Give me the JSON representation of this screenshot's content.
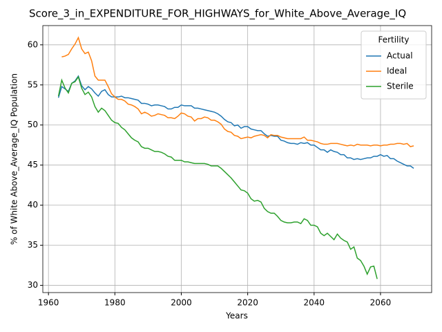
{
  "chart_data": {
    "type": "line",
    "title": "Score_3_in_EXPENDITURE_FOR_HIGHWAYS_for_White_Above_Average_IQ",
    "xlabel": "Years",
    "ylabel": "% of White Above_Average_IQ Population",
    "legend_title": "Fertility",
    "legend_loc": "upper right",
    "grid": true,
    "xlim": [
      1958.3,
      2075.4
    ],
    "ylim": [
      29.1,
      62.4
    ],
    "xticks": [
      1960,
      1980,
      2000,
      2020,
      2040,
      2060
    ],
    "yticks": [
      30,
      35,
      40,
      45,
      50,
      55,
      60
    ],
    "x": [
      1963,
      1964,
      1965,
      1966,
      1967,
      1968,
      1969,
      1970,
      1971,
      1972,
      1973,
      1974,
      1975,
      1976,
      1977,
      1978,
      1979,
      1980,
      1981,
      1982,
      1983,
      1984,
      1985,
      1986,
      1987,
      1988,
      1989,
      1990,
      1991,
      1992,
      1993,
      1994,
      1995,
      1996,
      1997,
      1998,
      1999,
      2000,
      2001,
      2002,
      2003,
      2004,
      2005,
      2006,
      2007,
      2008,
      2009,
      2010,
      2011,
      2012,
      2013,
      2014,
      2015,
      2016,
      2017,
      2018,
      2019,
      2020,
      2021,
      2022,
      2023,
      2024,
      2025,
      2026,
      2027,
      2028,
      2029,
      2030,
      2031,
      2032,
      2033,
      2034,
      2035,
      2036,
      2037,
      2038,
      2039,
      2040,
      2041,
      2042,
      2043,
      2044,
      2045,
      2046,
      2047,
      2048,
      2049,
      2050,
      2051,
      2052,
      2053,
      2054,
      2055,
      2056,
      2057,
      2058,
      2059,
      2060,
      2061,
      2062,
      2063,
      2064,
      2065,
      2066,
      2067,
      2068,
      2069,
      2070
    ],
    "series": [
      {
        "name": "Actual",
        "color": "#1f77b4",
        "values": [
          53.4,
          54.8,
          54.5,
          54.2,
          55.2,
          55.5,
          56.1,
          54.9,
          54.4,
          54.8,
          54.5,
          54.0,
          53.6,
          54.2,
          54.4,
          53.8,
          53.5,
          53.5,
          53.5,
          53.6,
          53.4,
          53.4,
          53.3,
          53.2,
          53.1,
          52.7,
          52.7,
          52.6,
          52.4,
          52.5,
          52.5,
          52.4,
          52.3,
          52.0,
          52.0,
          52.2,
          52.2,
          52.5,
          52.4,
          52.4,
          52.4,
          52.1,
          52.1,
          52.0,
          51.9,
          51.8,
          51.7,
          51.6,
          51.4,
          51.1,
          50.7,
          50.4,
          50.3,
          49.9,
          50.0,
          49.6,
          49.8,
          49.8,
          49.5,
          49.4,
          49.3,
          49.3,
          48.9,
          48.6,
          48.7,
          48.6,
          48.6,
          48.1,
          48.0,
          47.8,
          47.7,
          47.7,
          47.6,
          47.8,
          47.7,
          47.8,
          47.5,
          47.5,
          47.2,
          46.9,
          46.9,
          46.6,
          46.9,
          46.7,
          46.6,
          46.3,
          46.3,
          45.9,
          45.9,
          45.7,
          45.8,
          45.7,
          45.8,
          45.9,
          45.9,
          46.1,
          46.1,
          46.3,
          46.1,
          46.2,
          45.8,
          45.8,
          45.5,
          45.3,
          45.1,
          44.9,
          44.9,
          44.6
        ]
      },
      {
        "name": "Ideal",
        "color": "#ff7f0e",
        "values": [
          null,
          58.5,
          58.6,
          58.8,
          59.5,
          60.1,
          60.9,
          59.5,
          58.9,
          59.1,
          58.0,
          56.1,
          55.6,
          55.6,
          55.6,
          54.8,
          53.9,
          53.5,
          53.2,
          53.2,
          53.0,
          52.6,
          52.5,
          52.3,
          52.0,
          51.4,
          51.6,
          51.4,
          51.1,
          51.2,
          51.4,
          51.3,
          51.2,
          50.9,
          50.9,
          50.8,
          51.1,
          51.5,
          51.4,
          51.1,
          51.0,
          50.5,
          50.8,
          50.8,
          51.0,
          50.9,
          50.6,
          50.6,
          50.4,
          50.1,
          49.5,
          49.2,
          49.1,
          48.7,
          48.6,
          48.3,
          48.4,
          48.5,
          48.4,
          48.6,
          48.7,
          48.8,
          48.7,
          48.4,
          48.8,
          48.7,
          48.7,
          48.5,
          48.4,
          48.3,
          48.3,
          48.3,
          48.3,
          48.3,
          48.5,
          48.1,
          48.1,
          48.0,
          47.9,
          47.7,
          47.6,
          47.6,
          47.7,
          47.7,
          47.7,
          47.6,
          47.5,
          47.4,
          47.5,
          47.4,
          47.6,
          47.5,
          47.5,
          47.5,
          47.4,
          47.5,
          47.5,
          47.4,
          47.5,
          47.5,
          47.6,
          47.6,
          47.7,
          47.7,
          47.6,
          47.7,
          47.3,
          47.4
        ]
      },
      {
        "name": "Sterile",
        "color": "#2ca02c",
        "values": [
          53.6,
          55.6,
          54.6,
          54.0,
          55.2,
          55.4,
          56.0,
          54.6,
          53.8,
          54.1,
          53.5,
          52.3,
          51.6,
          52.1,
          51.8,
          51.2,
          50.6,
          50.3,
          50.2,
          49.7,
          49.4,
          48.9,
          48.4,
          48.1,
          47.9,
          47.3,
          47.1,
          47.1,
          46.9,
          46.7,
          46.7,
          46.6,
          46.4,
          46.1,
          46.0,
          45.6,
          45.6,
          45.6,
          45.4,
          45.4,
          45.3,
          45.2,
          45.2,
          45.2,
          45.2,
          45.1,
          44.9,
          44.9,
          44.9,
          44.6,
          44.2,
          43.8,
          43.4,
          42.9,
          42.4,
          41.9,
          41.8,
          41.5,
          40.8,
          40.5,
          40.6,
          40.4,
          39.6,
          39.2,
          39.0,
          39.0,
          38.6,
          38.1,
          37.9,
          37.8,
          37.8,
          37.9,
          37.9,
          37.7,
          38.3,
          38.1,
          37.5,
          37.5,
          37.3,
          36.5,
          36.2,
          36.5,
          36.1,
          35.7,
          36.4,
          35.9,
          35.6,
          35.4,
          34.5,
          34.8,
          33.4,
          33.1,
          32.4,
          31.4,
          32.3,
          32.4,
          30.8,
          null,
          null,
          null,
          null,
          null,
          null,
          null,
          null,
          null,
          null,
          null
        ]
      }
    ]
  }
}
